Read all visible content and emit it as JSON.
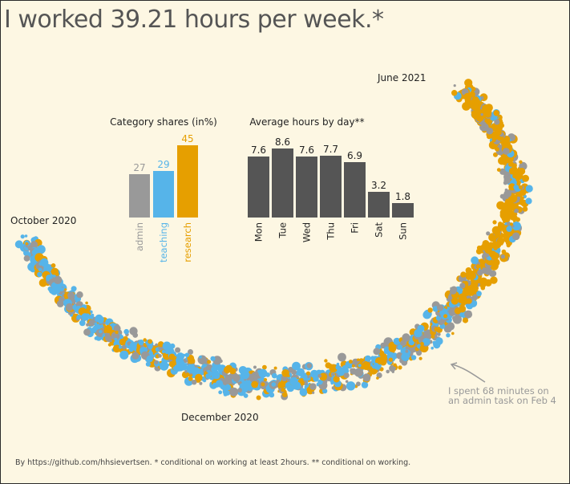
{
  "title": "I worked 39.21 hours per week.*",
  "footer": "By https://github.com/hhsievertsen. * conditional on working at least 2hours. ** conditional on working.",
  "colors": {
    "background": "#fdf7e3",
    "admin": "#999999",
    "teaching": "#56b4e9",
    "research": "#e69f00",
    "daybar": "#555555",
    "annotation": "#999999"
  },
  "timeline": {
    "labels": {
      "start": "October 2020",
      "mid": "December 2020",
      "end": "June 2021"
    },
    "annotation": "I spent 68 minutes on\nan admin task on Feb 4"
  },
  "chart_data": [
    {
      "type": "bar",
      "title": "Category shares (in%)",
      "categories": [
        "admin",
        "teaching",
        "research"
      ],
      "values": [
        27,
        29,
        45
      ],
      "colors": [
        "#999999",
        "#56b4e9",
        "#e69f00"
      ],
      "ylim": [
        0,
        45
      ]
    },
    {
      "type": "bar",
      "title": "Average hours by day**",
      "categories": [
        "Mon",
        "Tue",
        "Wed",
        "Thu",
        "Fri",
        "Sat",
        "Sun"
      ],
      "values": [
        7.6,
        8.6,
        7.6,
        7.7,
        6.9,
        3.2,
        1.8
      ],
      "ylim": [
        0,
        8.6
      ]
    },
    {
      "type": "scatter",
      "title": "",
      "x_range": [
        "October 2020",
        "June 2021"
      ],
      "series": [
        {
          "name": "admin",
          "color": "#999999"
        },
        {
          "name": "teaching",
          "color": "#56b4e9"
        },
        {
          "name": "research",
          "color": "#e69f00"
        }
      ]
    }
  ]
}
